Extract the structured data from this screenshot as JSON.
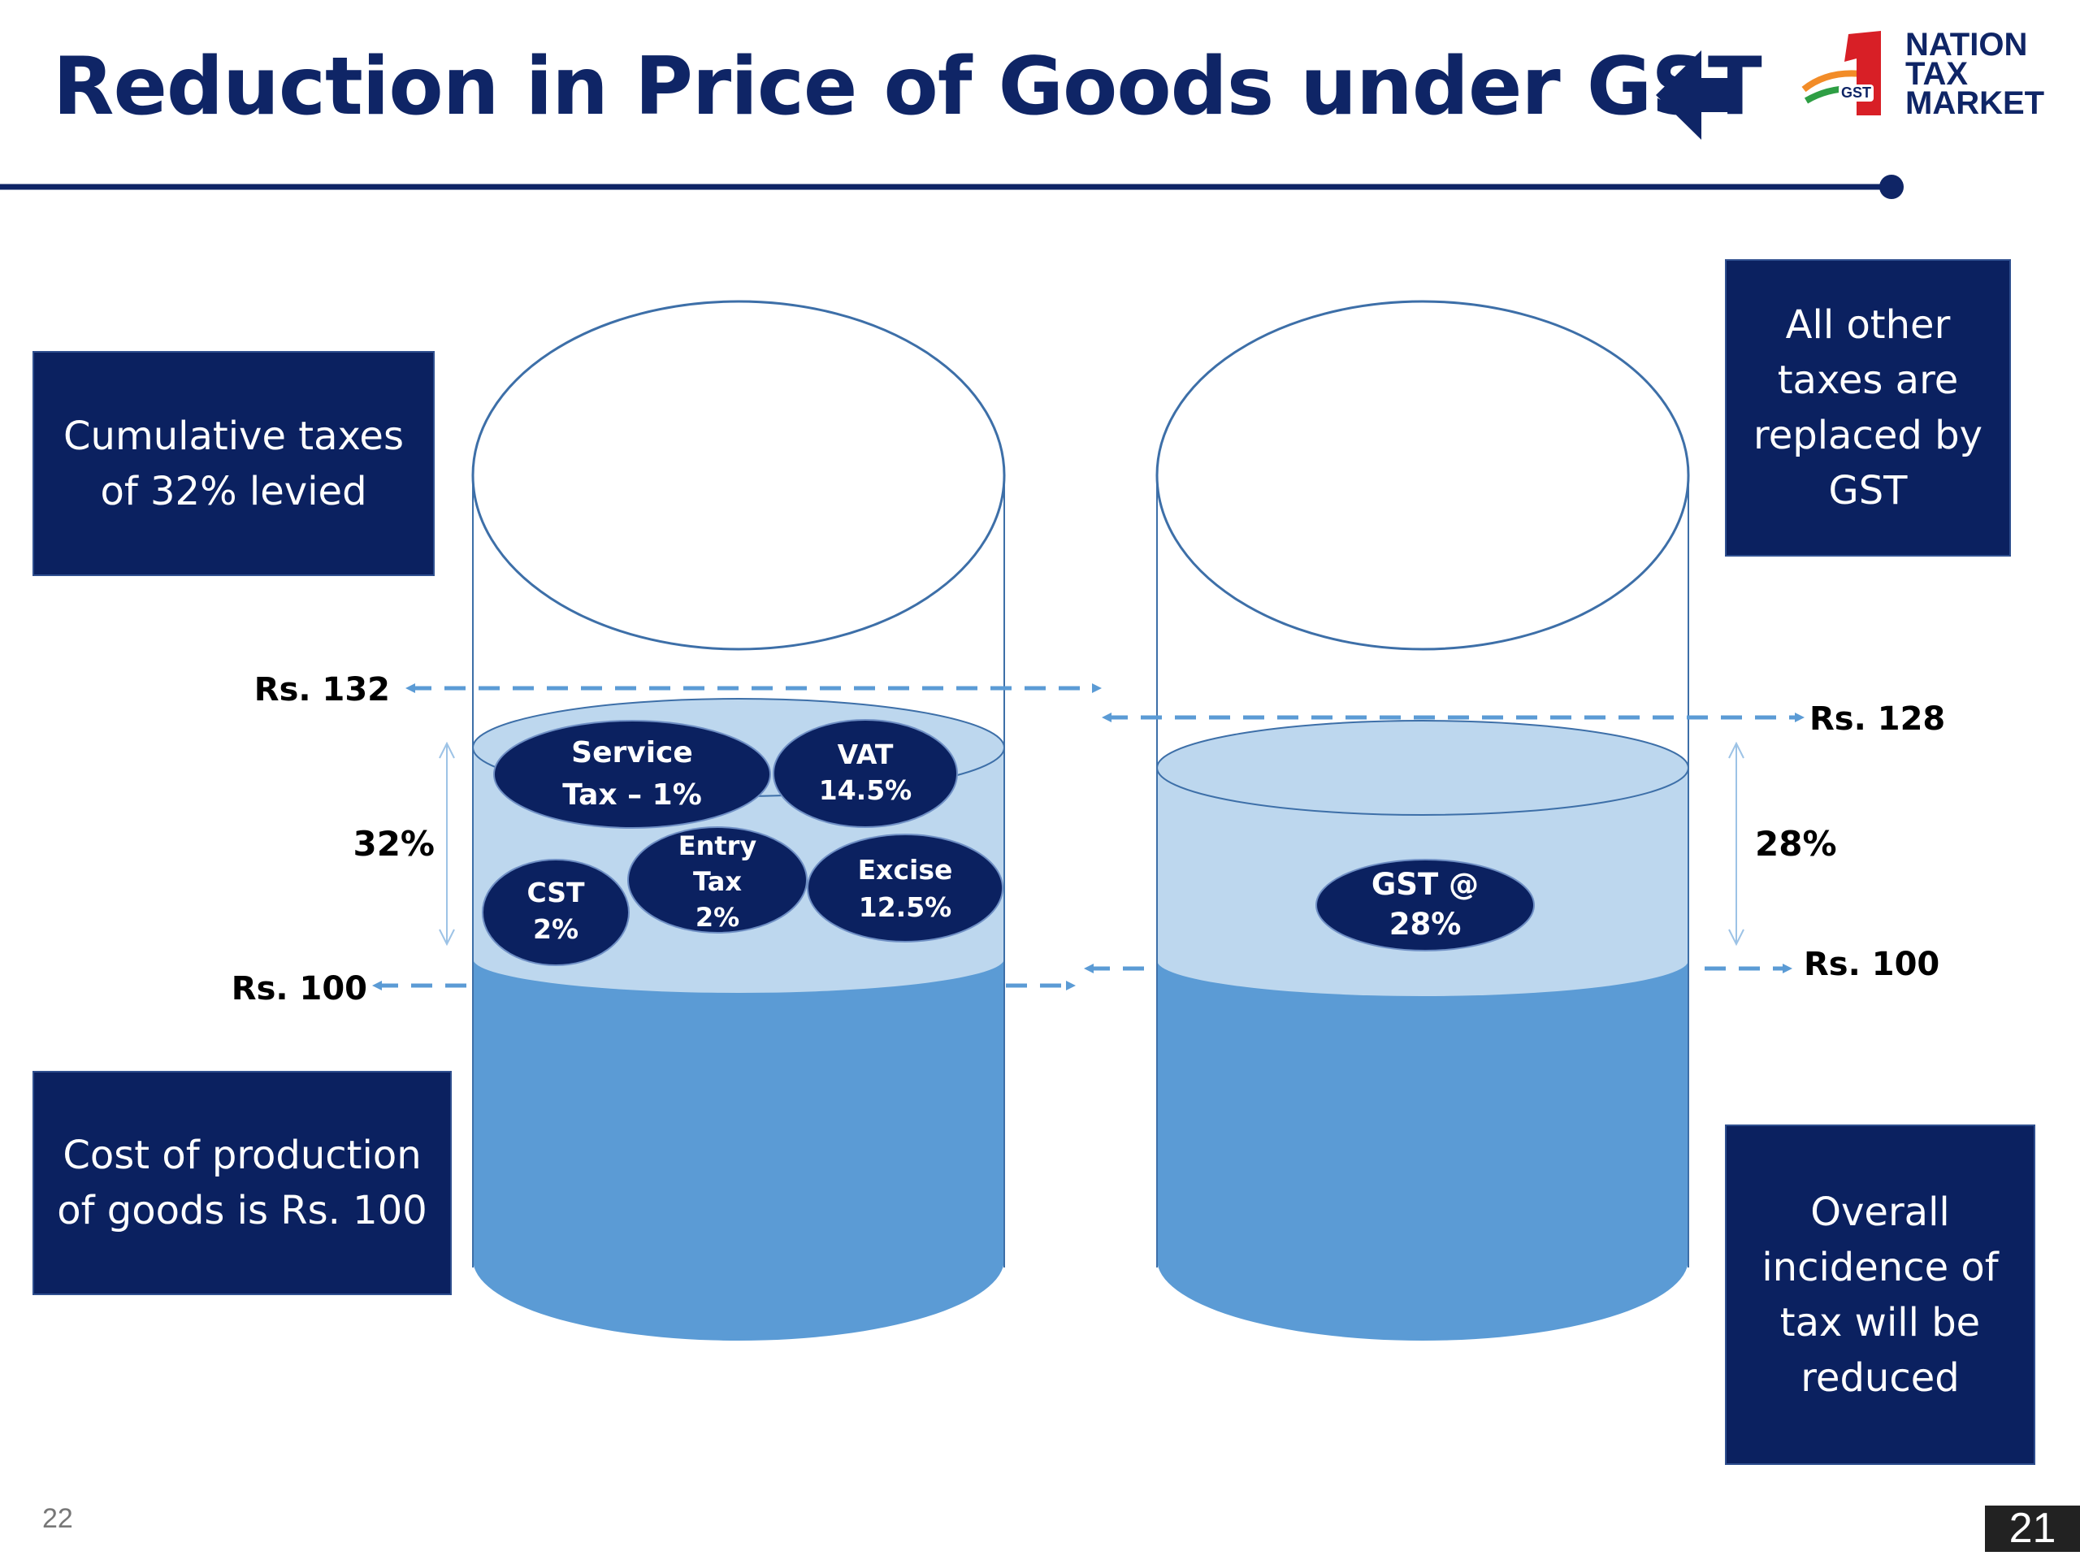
{
  "title": "Reduction in Price of Goods under GST",
  "logo": {
    "line1": "NATION",
    "line2": "TAX",
    "line3": "MARKET",
    "badge": "GST"
  },
  "boxes": {
    "cumulative": "Cumulative taxes of 32% levied",
    "cost": "Cost of production of goods is Rs. 100",
    "replaced": "All other taxes are replaced by GST",
    "overall": "Overall incidence of tax will be reduced"
  },
  "left_cylinder": {
    "top_price": "Rs. 132",
    "bottom_price": "Rs. 100",
    "percent": "32%",
    "taxes": [
      {
        "l1": "Service",
        "l2": "Tax – 1%"
      },
      {
        "l1": "VAT",
        "l2": "14.5%"
      },
      {
        "l1": "Entry",
        "l2": "Tax",
        "l3": "2%"
      },
      {
        "l1": "Excise",
        "l2": "12.5%"
      },
      {
        "l1": "CST",
        "l2": "2%"
      }
    ]
  },
  "right_cylinder": {
    "top_price": "Rs. 128",
    "bottom_price": "Rs. 100",
    "percent": "28%",
    "gst": {
      "l1": "GST @",
      "l2": "28%"
    }
  },
  "page_left": "22",
  "page_right": "21",
  "colors": {
    "navy": "#0b2160",
    "title": "#0f2566",
    "dark_water": "#5b9bd5",
    "light_water": "#bdd7ee",
    "arrow": "#5b9bd5",
    "outline": "#3d6fa8"
  }
}
